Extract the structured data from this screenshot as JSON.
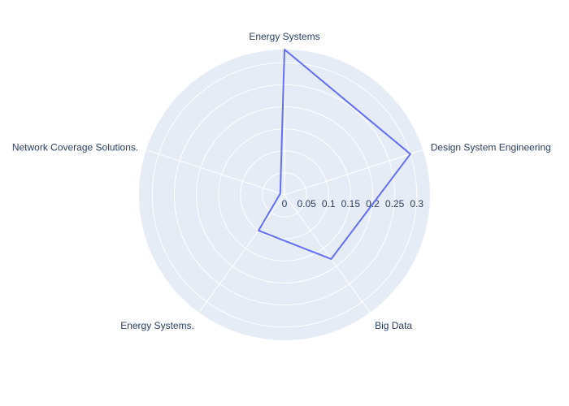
{
  "chart_data": {
    "type": "radar",
    "categories": [
      "Energy Systems",
      "Design System Engineering",
      "Big Data",
      "Energy Systems.",
      "Network Coverage Solutions."
    ],
    "values": [
      0.33,
      0.3,
      0.18,
      0.1,
      0.01
    ],
    "radial_ticks": [
      "0",
      "0.05",
      "0.1",
      "0.15",
      "0.2",
      "0.25",
      "0.3"
    ],
    "radial_range": [
      0,
      0.33
    ],
    "grid": true,
    "colors": {
      "background": "#E5ECF6",
      "grid": "#ffffff",
      "line": "#636EFA",
      "text": "#2a3f5f"
    }
  }
}
